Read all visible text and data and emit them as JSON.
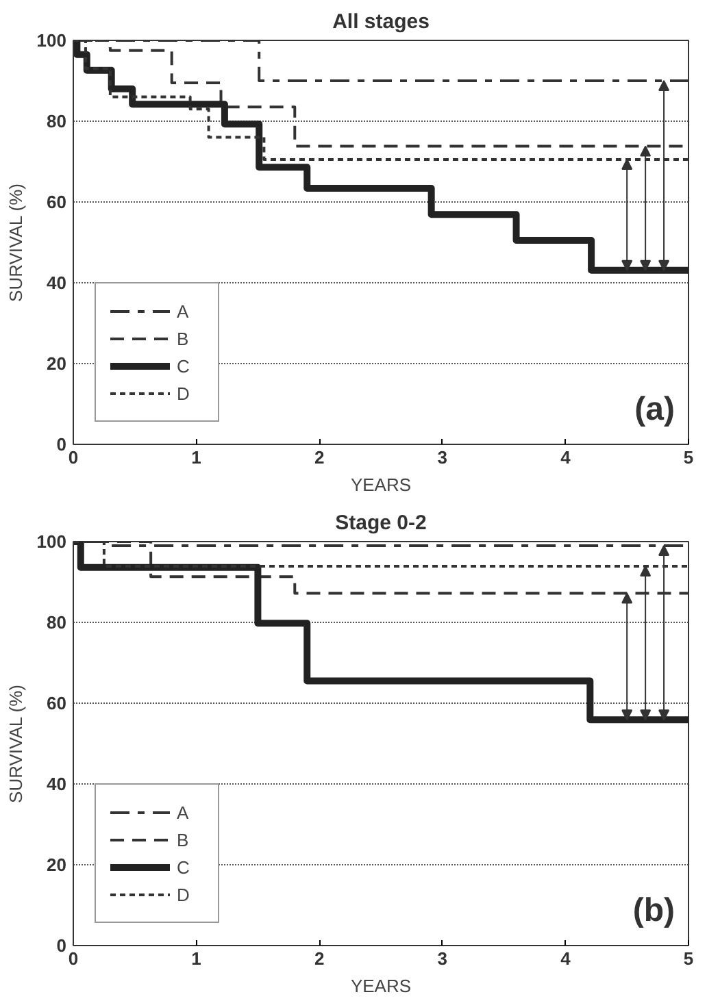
{
  "chart_data": [
    {
      "type": "step",
      "title": "All stages",
      "xlabel": "YEARS",
      "ylabel": "SURVIVAL (%)",
      "xlim": [
        0,
        5
      ],
      "xticks": [
        0,
        1,
        2,
        3,
        4,
        5
      ],
      "ylim": [
        0,
        100
      ],
      "yticks": [
        0,
        20,
        40,
        60,
        80,
        100
      ],
      "grid": "y",
      "legend": "bottom left",
      "annotations": [
        "(a)"
      ],
      "series": [
        {
          "name": "A",
          "color": "#333333",
          "line_style": "dashdot",
          "x": [
            0,
            1.51,
            5
          ],
          "values": [
            100,
            90,
            90
          ]
        },
        {
          "name": "B",
          "color": "#333333",
          "line_style": "dashed",
          "x": [
            0,
            0.3,
            0.8,
            1.2,
            1.8,
            5
          ],
          "values": [
            100,
            97.5,
            89.5,
            83.5,
            73.8,
            73.8
          ]
        },
        {
          "name": "C",
          "color": "#222222",
          "line_style": "solid",
          "x": [
            0,
            0.03,
            0.11,
            0.31,
            0.48,
            1.23,
            1.51,
            1.9,
            2.91,
            3.6,
            4.21,
            5
          ],
          "values": [
            100,
            96.5,
            92.6,
            88,
            84.2,
            79.3,
            68.6,
            63.4,
            56.9,
            50.5,
            43.1,
            43.1
          ]
        },
        {
          "name": "D",
          "color": "#333333",
          "line_style": "dotted",
          "x": [
            0,
            0.1,
            0.3,
            0.95,
            1.1,
            1.55,
            5
          ],
          "values": [
            100,
            93,
            86,
            83,
            76,
            70.5,
            70.5
          ]
        }
      ]
    },
    {
      "type": "step",
      "title": "Stage 0-2",
      "xlabel": "YEARS",
      "ylabel": "SURVIVAL (%)",
      "xlim": [
        0,
        5
      ],
      "xticks": [
        0,
        1,
        2,
        3,
        4,
        5
      ],
      "ylim": [
        0,
        100
      ],
      "yticks": [
        0,
        20,
        40,
        60,
        80,
        100
      ],
      "grid": "y",
      "legend": "bottom left",
      "annotations": [
        "(b)"
      ],
      "series": [
        {
          "name": "A",
          "color": "#333333",
          "line_style": "dashdot",
          "x": [
            0,
            0.3,
            5
          ],
          "values": [
            100,
            99,
            99
          ]
        },
        {
          "name": "B",
          "color": "#333333",
          "line_style": "dashed",
          "x": [
            0,
            0.63,
            1.8,
            5
          ],
          "values": [
            100,
            91.3,
            87.2,
            87.2
          ]
        },
        {
          "name": "C",
          "color": "#222222",
          "line_style": "solid",
          "x": [
            0,
            0.06,
            1.5,
            1.9,
            4.2,
            5
          ],
          "values": [
            100,
            93.6,
            79.8,
            65.5,
            55.9,
            55.9
          ]
        },
        {
          "name": "D",
          "color": "#333333",
          "line_style": "dotted",
          "x": [
            0,
            0.25,
            5
          ],
          "values": [
            100,
            93.9,
            93.9
          ]
        }
      ]
    }
  ]
}
